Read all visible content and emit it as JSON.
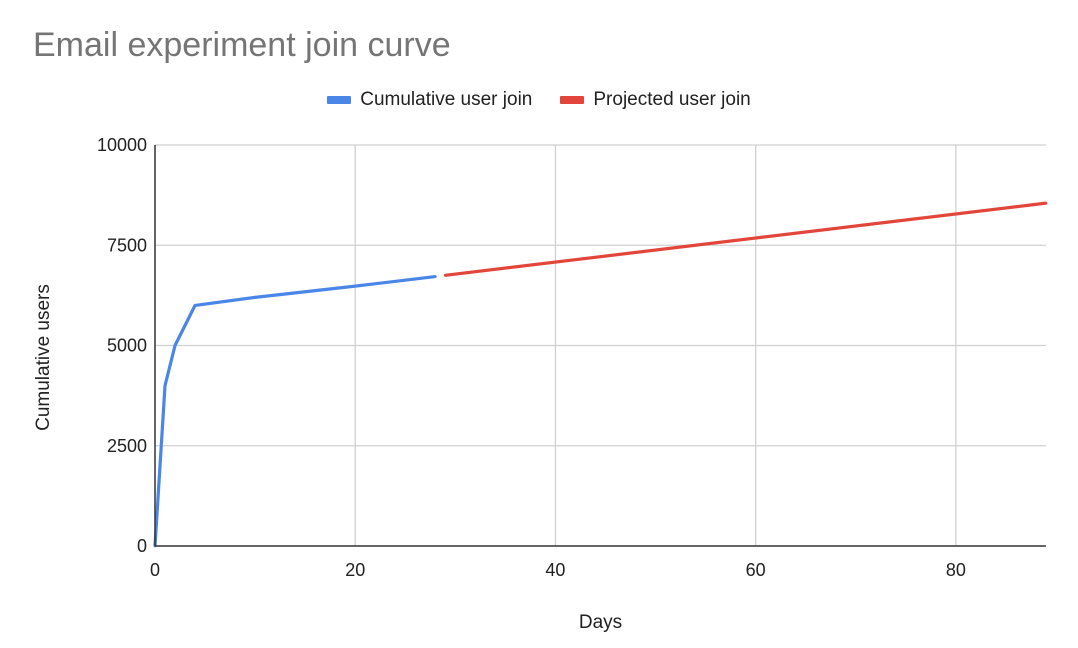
{
  "chart_data": {
    "type": "line",
    "title": "Email experiment join curve",
    "xlabel": "Days",
    "ylabel": "Cumulative users",
    "xlim": [
      0,
      89
    ],
    "ylim": [
      0,
      10000
    ],
    "x_ticks": [
      0,
      20,
      40,
      60,
      80
    ],
    "y_ticks": [
      0,
      2500,
      5000,
      7500,
      10000
    ],
    "grid": true,
    "legend_position": "top",
    "series": [
      {
        "name": "Cumulative user join",
        "color": "#4a86e8",
        "points": [
          [
            0,
            0
          ],
          [
            1,
            4000
          ],
          [
            2,
            5000
          ],
          [
            4,
            6000
          ],
          [
            10,
            6200
          ],
          [
            20,
            6480
          ],
          [
            28,
            6720
          ]
        ]
      },
      {
        "name": "Projected user join",
        "color": "#e2463a",
        "points": [
          [
            29,
            6750
          ],
          [
            89,
            8550
          ]
        ]
      }
    ]
  }
}
